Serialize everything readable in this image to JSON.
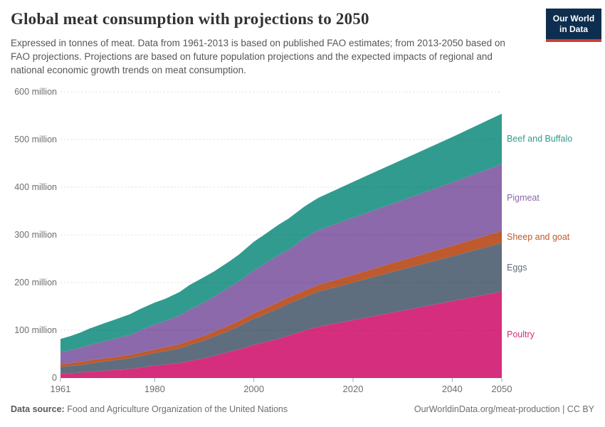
{
  "header": {
    "title": "Global meat consumption with projections to 2050",
    "subtitle": "Expressed in tonnes of meat. Data from 1961-2013 is based on published FAO estimates; from 2013-2050 based on FAO projections. Projections are based on future population projections and the expected impacts of regional and national economic growth trends on meat consumption.",
    "logo": {
      "line1": "Our World",
      "line2": "in Data",
      "bg_color": "#0d2e4e",
      "accent_color": "#d13d33"
    }
  },
  "chart_data": {
    "type": "area",
    "stacked": true,
    "title": "Global meat consumption with projections to 2050",
    "unit": "million tonnes",
    "xlabel": "",
    "ylabel": "tonnes of meat",
    "xlim": [
      1961,
      2050
    ],
    "ylim": [
      0,
      600
    ],
    "grid": "horizontal-dashed",
    "legend_position": "right",
    "projection_start_year": 2013,
    "x": [
      1961,
      1963,
      1965,
      1967,
      1970,
      1972,
      1975,
      1977,
      1980,
      1982,
      1985,
      1987,
      1990,
      1992,
      1995,
      1997,
      2000,
      2002,
      2005,
      2007,
      2010,
      2011,
      2013,
      2020,
      2030,
      2040,
      2050
    ],
    "series": [
      {
        "name": "Poultry",
        "color": "#d62e7e",
        "values": [
          8.9,
          9.8,
          11.1,
          12.9,
          15.1,
          16.5,
          18.7,
          21.3,
          25.9,
          27.9,
          31.2,
          35.3,
          41.0,
          46.3,
          54.7,
          59.7,
          69.2,
          74.2,
          82.0,
          88.8,
          98.5,
          101.9,
          107.0,
          121,
          141,
          161,
          181
        ]
      },
      {
        "name": "Eggs",
        "color": "#5f6e7f",
        "values": [
          14.4,
          15.0,
          16.2,
          17.6,
          19.5,
          20.8,
          22.8,
          24.3,
          26.2,
          27.9,
          30.8,
          33.7,
          37.6,
          40.6,
          44.3,
          48.8,
          55.1,
          58.4,
          64.0,
          66.8,
          69.8,
          71.0,
          73.9,
          79,
          87,
          94,
          102
        ]
      },
      {
        "name": "Sheep and goat",
        "color": "#be5a2d",
        "values": [
          6.0,
          6.1,
          6.3,
          6.4,
          6.6,
          6.6,
          6.7,
          7.0,
          7.6,
          8.0,
          8.8,
          9.3,
          9.9,
          10.2,
          10.8,
          11.0,
          11.4,
          12.0,
          13.0,
          13.3,
          13.6,
          13.7,
          13.9,
          16,
          19,
          22,
          25
        ]
      },
      {
        "name": "Pigmeat",
        "color": "#8c69aa",
        "values": [
          24.7,
          26.8,
          29.7,
          32.3,
          35.8,
          38.2,
          41.7,
          46.6,
          52.7,
          55.0,
          59.9,
          64.5,
          69.9,
          73.4,
          80.1,
          83.3,
          90.0,
          93.5,
          98.5,
          99.8,
          109.3,
          111.2,
          115.1,
          120,
          126,
          133,
          140
        ]
      },
      {
        "name": "Beef and Buffalo",
        "color": "#329b8f",
        "values": [
          27.7,
          30.0,
          31.8,
          34.9,
          38.3,
          40.3,
          43.7,
          45.0,
          45.6,
          46.5,
          49.3,
          51.8,
          53.4,
          53.0,
          54.2,
          56.0,
          59.9,
          61.5,
          64.0,
          65.5,
          66.7,
          67.0,
          67.7,
          75,
          85,
          95,
          106
        ]
      }
    ],
    "x_ticks": [
      1961,
      1980,
      2000,
      2020,
      2040,
      2050
    ],
    "y_ticks": [
      {
        "value": 0,
        "label": "0"
      },
      {
        "value": 100,
        "label": "100 million"
      },
      {
        "value": 200,
        "label": "200 million"
      },
      {
        "value": 300,
        "label": "300 million"
      },
      {
        "value": 400,
        "label": "400 million"
      },
      {
        "value": 500,
        "label": "500 million"
      },
      {
        "value": 600,
        "label": "600 million"
      }
    ]
  },
  "footer": {
    "source_label": "Data source:",
    "source_value": "Food and Agriculture Organization of the United Nations",
    "link": "OurWorldinData.org/meat-production | CC BY"
  }
}
